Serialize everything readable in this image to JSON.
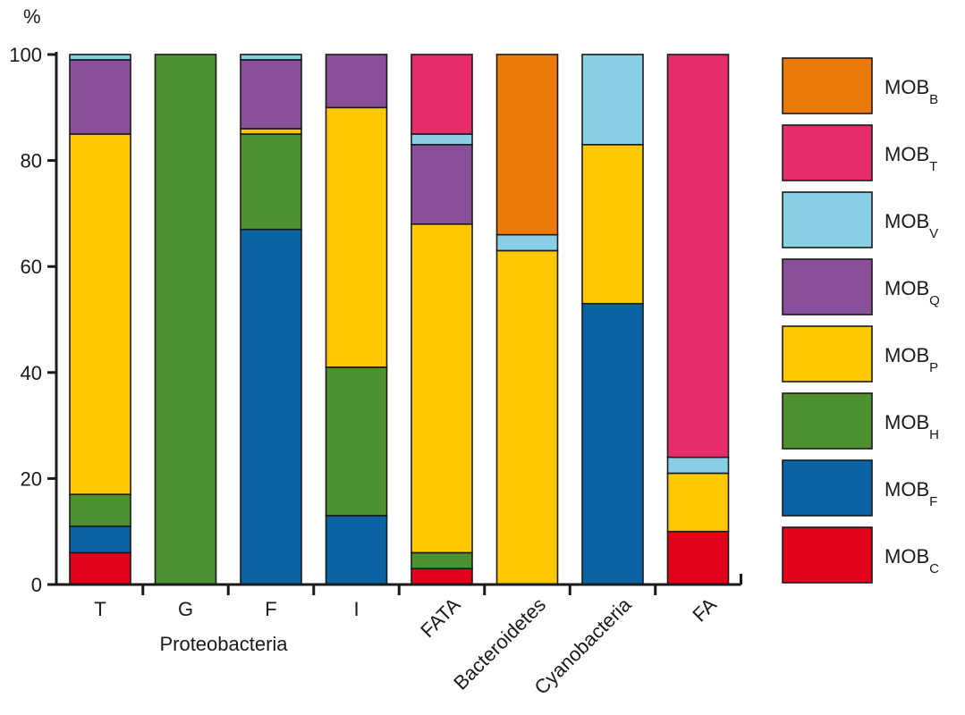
{
  "chart_data": {
    "type": "bar",
    "stacked": true,
    "y_unit_label": "%",
    "ylim": [
      0,
      100
    ],
    "yticks": [
      0,
      20,
      40,
      60,
      80,
      100
    ],
    "categories": [
      "T",
      "G",
      "F",
      "I",
      "FATA",
      "Bacteroidetes",
      "Cyanobacteria",
      "FA"
    ],
    "category_group_label": "Proteobacteria",
    "grid": false,
    "legend_position": "right",
    "series": [
      {
        "key": "MOB_C",
        "name_main": "MOB",
        "name_sub": "C",
        "color": "#e2001a",
        "values": [
          6,
          0,
          0,
          0,
          3,
          0,
          0,
          10
        ]
      },
      {
        "key": "MOB_F",
        "name_main": "MOB",
        "name_sub": "F",
        "color": "#0a64a4",
        "values": [
          5,
          0,
          67,
          13,
          0,
          0,
          53,
          0
        ]
      },
      {
        "key": "MOB_H",
        "name_main": "MOB",
        "name_sub": "H",
        "color": "#4e9130",
        "values": [
          6,
          100,
          18,
          28,
          3,
          0,
          0,
          0
        ]
      },
      {
        "key": "MOB_P",
        "name_main": "MOB",
        "name_sub": "P",
        "color": "#ffc800",
        "values": [
          68,
          0,
          1,
          49,
          62,
          63,
          30,
          11
        ]
      },
      {
        "key": "MOB_Q",
        "name_main": "MOB",
        "name_sub": "Q",
        "color": "#894f98",
        "values": [
          14,
          0,
          13,
          10,
          15,
          0,
          0,
          0
        ]
      },
      {
        "key": "MOB_V",
        "name_main": "MOB",
        "name_sub": "V",
        "color": "#88cfe6",
        "values": [
          1,
          0,
          1,
          0,
          2,
          3,
          17,
          3
        ]
      },
      {
        "key": "MOB_T",
        "name_main": "MOB",
        "name_sub": "T",
        "color": "#e52d6d",
        "values": [
          0,
          0,
          0,
          0,
          15,
          0,
          0,
          76
        ]
      },
      {
        "key": "MOB_B",
        "name_main": "MOB",
        "name_sub": "B",
        "color": "#ec7a08",
        "values": [
          0,
          0,
          0,
          0,
          0,
          34,
          0,
          0
        ]
      }
    ],
    "legend_order": [
      "MOB_B",
      "MOB_T",
      "MOB_V",
      "MOB_Q",
      "MOB_P",
      "MOB_H",
      "MOB_F",
      "MOB_C"
    ]
  }
}
